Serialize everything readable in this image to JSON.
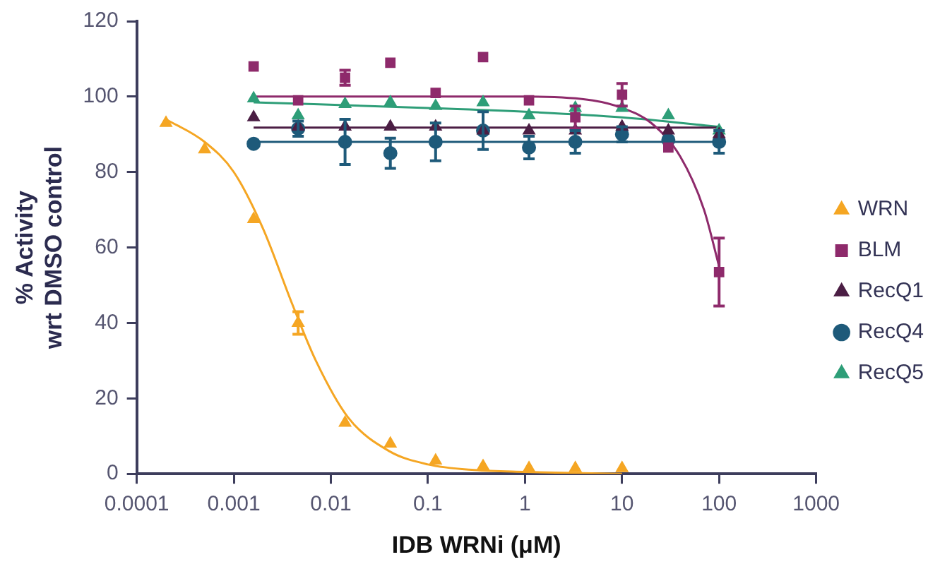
{
  "chart_data": {
    "type": "scatter",
    "xlabel": "IDB WRNi (μM)",
    "ylabel": "% Activity\nwrt DMSO control",
    "log": "x",
    "xlim": [
      0.0001,
      1000
    ],
    "xticks": [
      0.0001,
      0.001,
      0.01,
      0.1,
      1,
      10,
      100,
      1000
    ],
    "ylim": [
      0,
      120
    ],
    "yticks": [
      0,
      20,
      40,
      60,
      80,
      100,
      120
    ],
    "grid": false,
    "legend": "right",
    "series": [
      {
        "name": "WRN",
        "marker": "triangle",
        "color": "#f5a623",
        "x": [
          0.0002,
          0.0005,
          0.0016,
          0.0046,
          0.014,
          0.041,
          0.12,
          0.37,
          1.1,
          3.3,
          10
        ],
        "values": [
          93,
          86,
          67.5,
          40,
          13.5,
          8,
          3.5,
          2,
          1.5,
          1.5,
          1.5
        ],
        "errors": [
          null,
          null,
          null,
          3,
          null,
          null,
          null,
          null,
          null,
          null,
          null
        ]
      },
      {
        "name": "BLM",
        "marker": "square",
        "color": "#8e2a6b",
        "x": [
          0.0016,
          0.0046,
          0.014,
          0.041,
          0.12,
          0.37,
          1.1,
          3.3,
          10,
          30,
          100
        ],
        "values": [
          108,
          99,
          105,
          109,
          101,
          110.5,
          99,
          94.5,
          100.5,
          86.5,
          53.5
        ],
        "errors": [
          null,
          null,
          2,
          null,
          null,
          null,
          null,
          3,
          3,
          null,
          9
        ]
      },
      {
        "name": "RecQ1",
        "marker": "triangle",
        "color": "#4b1e44",
        "x": [
          0.0016,
          0.0046,
          0.014,
          0.041,
          0.12,
          0.37,
          1.1,
          3.3,
          10,
          30,
          100
        ],
        "values": [
          94.5,
          92,
          92,
          92,
          92,
          91,
          91,
          91,
          92,
          91,
          90
        ]
      },
      {
        "name": "RecQ4",
        "marker": "circle",
        "color": "#1e5a7a",
        "x": [
          0.0016,
          0.0046,
          0.014,
          0.041,
          0.12,
          0.37,
          1.1,
          3.3,
          10,
          30,
          100
        ],
        "values": [
          87.5,
          91.5,
          88,
          85,
          88,
          91,
          86.5,
          88,
          90,
          88.5,
          88
        ],
        "errors": [
          null,
          2,
          6,
          4,
          5,
          5,
          3,
          3,
          2,
          null,
          3
        ]
      },
      {
        "name": "RecQ5",
        "marker": "triangle",
        "color": "#2e9e78",
        "x": [
          0.0016,
          0.0046,
          0.014,
          0.041,
          0.12,
          0.37,
          1.1,
          3.3,
          10,
          30,
          100
        ],
        "values": [
          99.5,
          95,
          98,
          98.5,
          97.5,
          98.5,
          95,
          97,
          97,
          95,
          91
        ]
      },
      {
        "type": "line",
        "marker": "none",
        "color": "#f5a623",
        "x": [
          0.0002,
          0.0005,
          0.001,
          0.002,
          0.004,
          0.007,
          0.015,
          0.04,
          0.1,
          0.3,
          1,
          10
        ],
        "values": [
          94,
          88,
          80,
          65,
          45,
          30,
          15,
          6,
          2.5,
          1,
          0.5,
          0
        ]
      },
      {
        "type": "line",
        "marker": "none",
        "color": "#8e2a6b",
        "x": [
          0.0016,
          1,
          5,
          10,
          20,
          40,
          70,
          100
        ],
        "values": [
          100,
          100,
          99,
          97,
          93,
          84,
          70,
          55
        ]
      },
      {
        "type": "line",
        "marker": "none",
        "color": "#4b1e44",
        "x": [
          0.0016,
          0.01,
          0.1,
          1,
          10,
          100
        ],
        "values": [
          91.8,
          91.8,
          91.8,
          91.8,
          91.8,
          91.8
        ]
      },
      {
        "type": "line",
        "marker": "none",
        "color": "#1e5a7a",
        "x": [
          0.0016,
          0.01,
          0.1,
          1,
          10,
          100
        ],
        "values": [
          88,
          88,
          88,
          88,
          88,
          88
        ]
      },
      {
        "type": "line",
        "marker": "none",
        "color": "#2e9e78",
        "x": [
          0.0016,
          0.1,
          1,
          10,
          100
        ],
        "values": [
          98.5,
          97,
          96,
          94.5,
          92
        ]
      }
    ]
  }
}
